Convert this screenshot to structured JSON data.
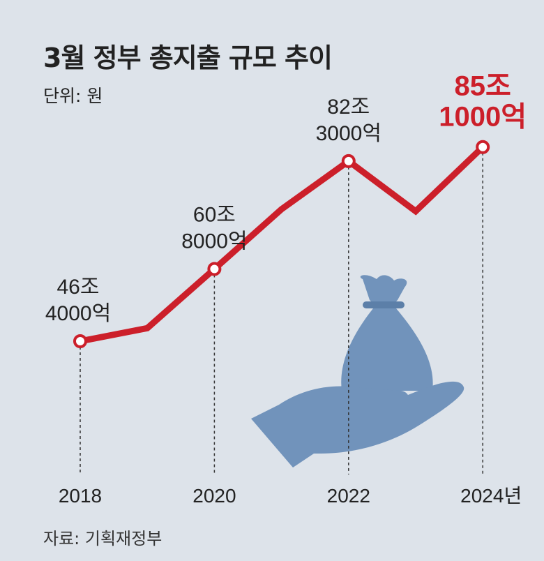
{
  "title": "3월 정부 총지출 규모 추이",
  "unit": "단위: 원",
  "source": "자료: 기획재정부",
  "colors": {
    "background": "#dde3ea",
    "line": "#cc1f2a",
    "highlight_text": "#cc1f2a",
    "illustration": "#7193bb",
    "text": "#222222"
  },
  "illustration": "hand-holding-money-bag-icon",
  "chart_data": {
    "type": "line",
    "x": [
      2018,
      2019,
      2020,
      2021,
      2022,
      2023,
      2024
    ],
    "values": [
      46.4,
      49.0,
      60.8,
      72.7,
      82.3,
      72.3,
      85.1
    ],
    "value_unit": "조 원",
    "x_tick_labels": [
      "2018",
      "2020",
      "2022",
      "2024년"
    ],
    "x_ticks": [
      2018,
      2020,
      2022,
      2024
    ],
    "ylim": [
      40,
      90
    ],
    "grid": false,
    "annotations": [
      {
        "x": 2018,
        "line1": "46조",
        "line2": "4000억",
        "highlight": false
      },
      {
        "x": 2020,
        "line1": "60조",
        "line2": "8000억",
        "highlight": false
      },
      {
        "x": 2022,
        "line1": "82조",
        "line2": "3000억",
        "highlight": false
      },
      {
        "x": 2024,
        "line1": "85조",
        "line2": "1000억",
        "highlight": true
      }
    ]
  }
}
